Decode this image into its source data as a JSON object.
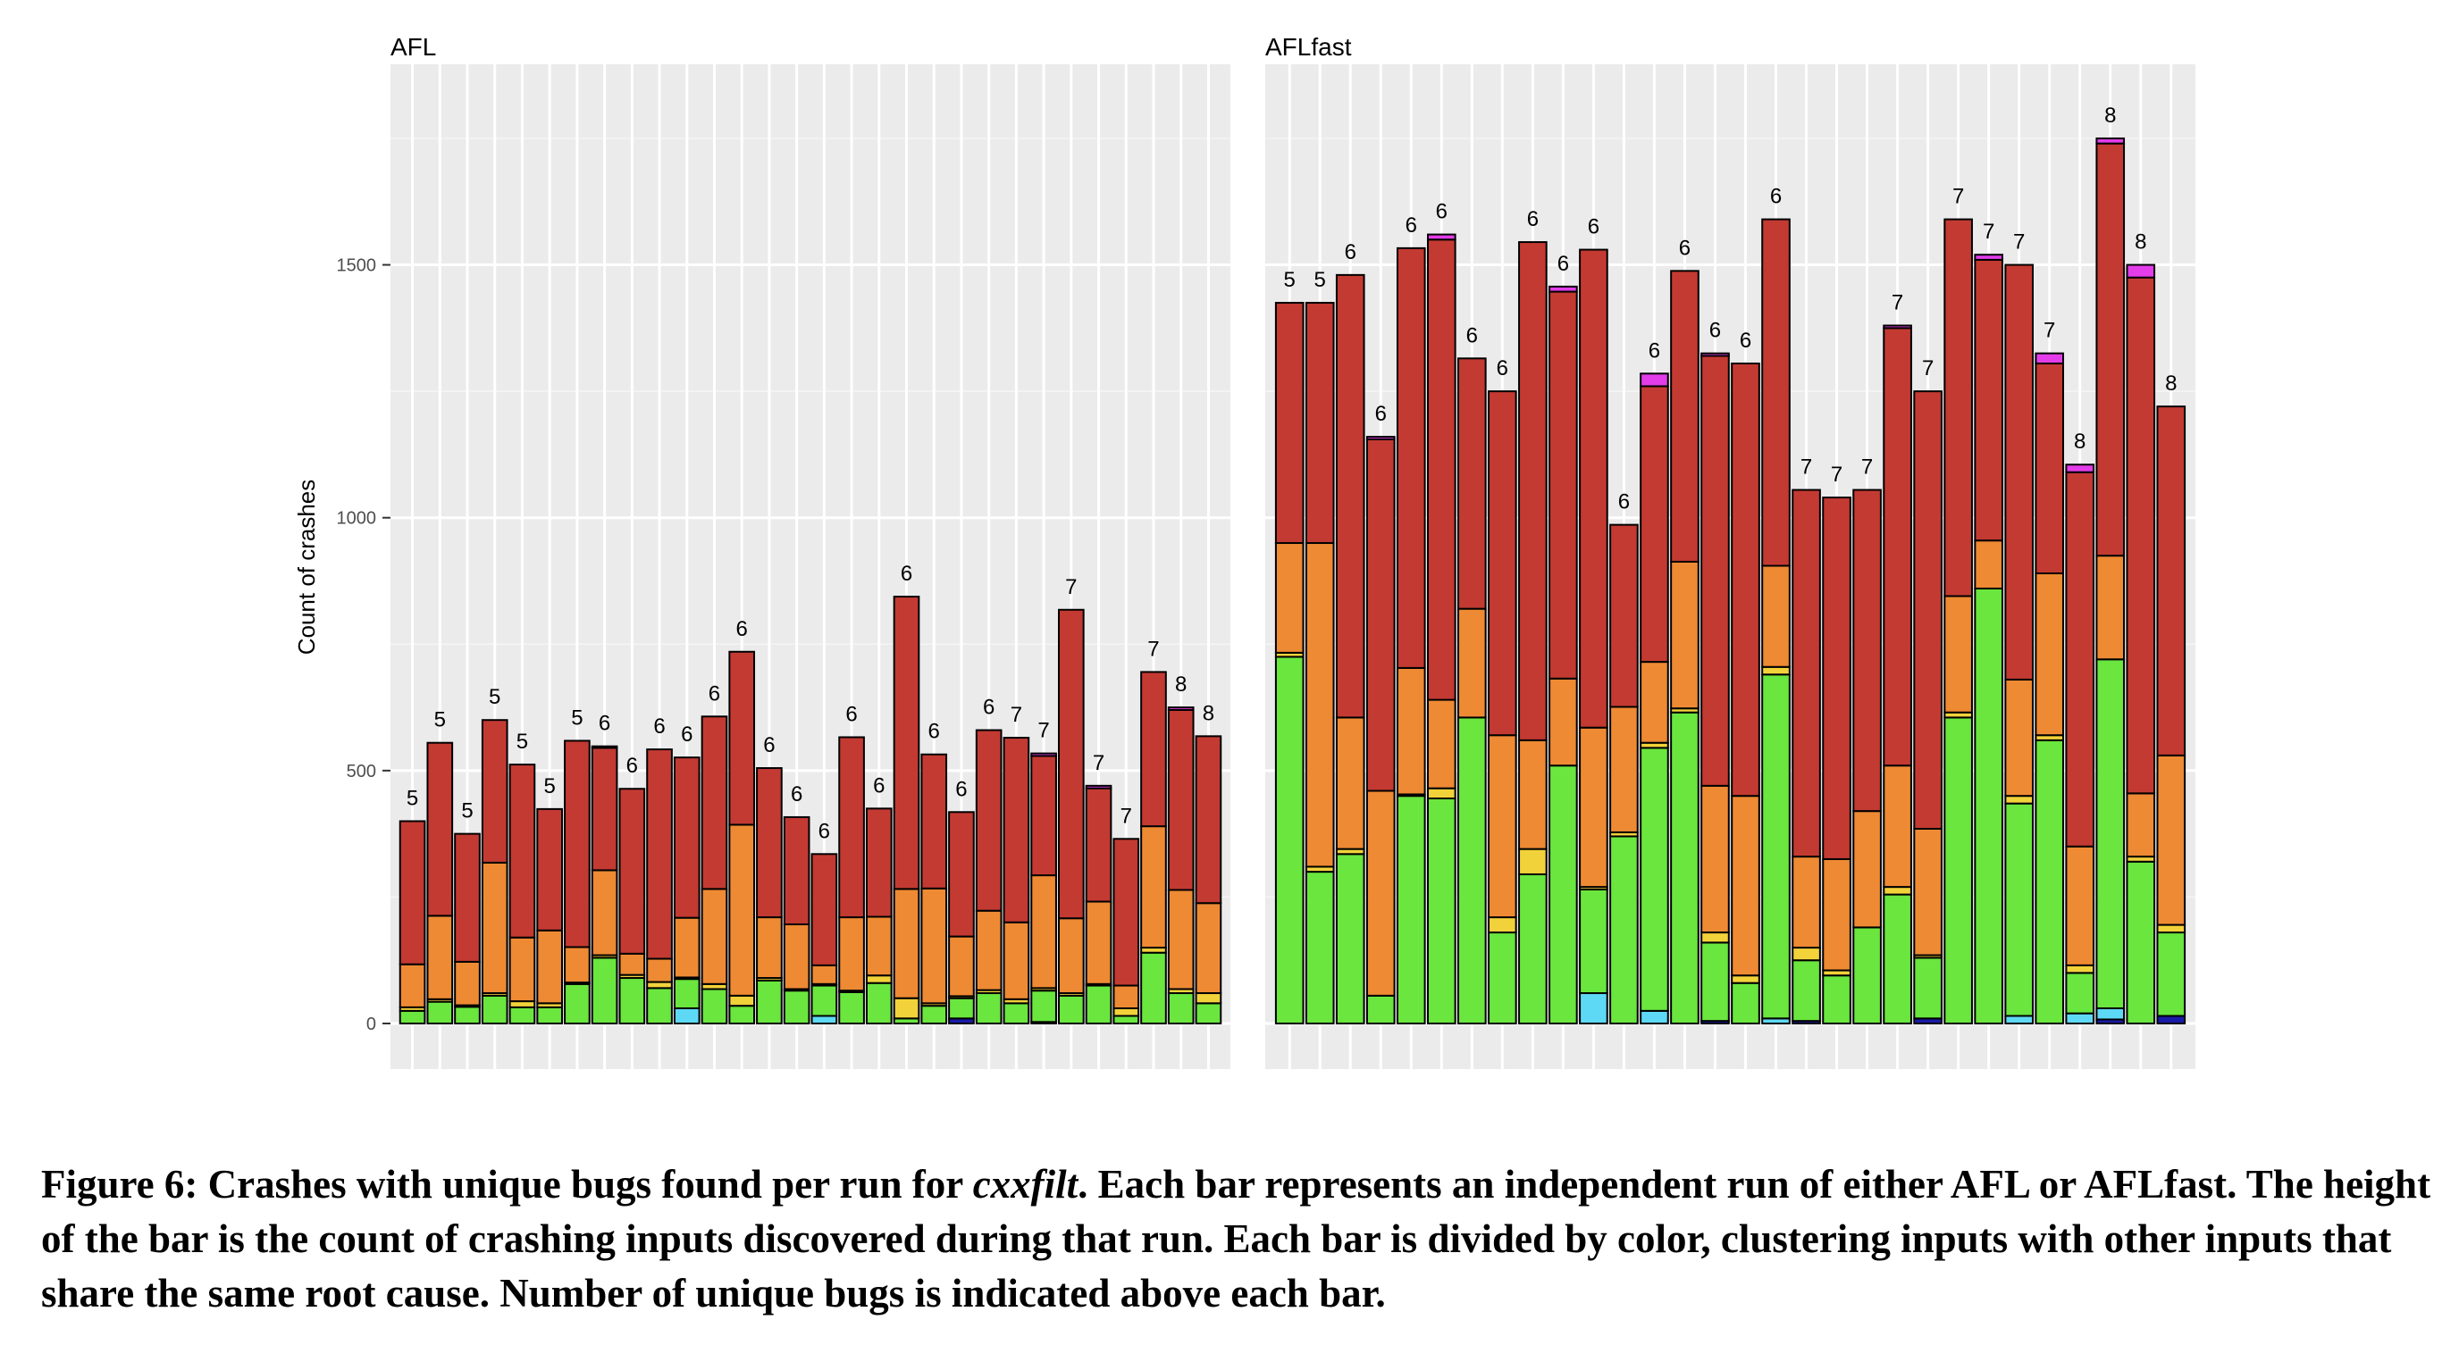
{
  "chart_data": [
    {
      "type": "bar",
      "stacked": true,
      "title": "AFL",
      "ylabel": "Count of crashes",
      "xlabel": "",
      "ylim": [
        0,
        1900
      ],
      "yticks": [
        0,
        500,
        1000,
        1500
      ],
      "grid": true,
      "legend": "none",
      "stack_colors": [
        "#1a1aa8",
        "#5ed9f5",
        "#6ae63e",
        "#f2d23a",
        "#ee8a33",
        "#c33a32",
        "#e23de8"
      ],
      "bars": [
        {
          "bugs": "5",
          "segments": [
            0,
            0,
            25,
            7,
            85,
            283,
            0
          ]
        },
        {
          "bugs": "5",
          "segments": [
            0,
            0,
            43,
            5,
            165,
            342,
            0
          ]
        },
        {
          "bugs": "5",
          "segments": [
            0,
            0,
            33,
            3,
            86,
            253,
            0
          ]
        },
        {
          "bugs": "5",
          "segments": [
            0,
            0,
            55,
            5,
            258,
            282,
            0
          ]
        },
        {
          "bugs": "5",
          "segments": [
            0,
            0,
            32,
            12,
            126,
            342,
            0
          ]
        },
        {
          "bugs": "5",
          "segments": [
            0,
            0,
            32,
            8,
            144,
            240,
            0
          ]
        },
        {
          "bugs": "5",
          "segments": [
            0,
            0,
            78,
            3,
            70,
            408,
            0
          ]
        },
        {
          "bugs": "6",
          "segments": [
            0,
            0,
            130,
            5,
            168,
            242,
            3
          ]
        },
        {
          "bugs": "6",
          "segments": [
            0,
            0,
            90,
            6,
            42,
            326,
            0
          ]
        },
        {
          "bugs": "6",
          "segments": [
            0,
            0,
            70,
            12,
            46,
            414,
            0
          ]
        },
        {
          "bugs": "6",
          "segments": [
            0,
            30,
            58,
            3,
            118,
            317,
            0
          ]
        },
        {
          "bugs": "6",
          "segments": [
            0,
            0,
            68,
            10,
            188,
            341,
            0
          ]
        },
        {
          "bugs": "6",
          "segments": [
            0,
            0,
            35,
            20,
            338,
            342,
            0
          ]
        },
        {
          "bugs": "6",
          "segments": [
            0,
            0,
            85,
            5,
            120,
            295,
            0
          ]
        },
        {
          "bugs": "6",
          "segments": [
            0,
            0,
            65,
            3,
            128,
            212,
            0
          ]
        },
        {
          "bugs": "6",
          "segments": [
            0,
            15,
            60,
            3,
            37,
            220,
            0
          ]
        },
        {
          "bugs": "6",
          "segments": [
            0,
            0,
            62,
            3,
            145,
            356,
            0
          ]
        },
        {
          "bugs": "6",
          "segments": [
            0,
            0,
            80,
            15,
            116,
            214,
            0
          ]
        },
        {
          "bugs": "6",
          "segments": [
            0,
            0,
            10,
            40,
            216,
            578,
            0
          ]
        },
        {
          "bugs": "6",
          "segments": [
            0,
            0,
            35,
            5,
            227,
            265,
            0
          ]
        },
        {
          "bugs": "6",
          "segments": [
            10,
            0,
            40,
            4,
            118,
            246,
            0
          ]
        },
        {
          "bugs": "6",
          "segments": [
            0,
            0,
            60,
            6,
            157,
            357,
            0
          ]
        },
        {
          "bugs": "7",
          "segments": [
            0,
            0,
            40,
            8,
            152,
            365,
            0
          ]
        },
        {
          "bugs": "7",
          "segments": [
            3,
            0,
            62,
            5,
            223,
            236,
            5
          ]
        },
        {
          "bugs": "7",
          "segments": [
            0,
            0,
            55,
            5,
            148,
            610,
            0
          ]
        },
        {
          "bugs": "7",
          "segments": [
            0,
            0,
            75,
            3,
            163,
            224,
            5
          ]
        },
        {
          "bugs": "7",
          "segments": [
            0,
            0,
            15,
            15,
            45,
            290,
            0
          ]
        },
        {
          "bugs": "7",
          "segments": [
            0,
            0,
            140,
            10,
            240,
            305,
            0
          ]
        },
        {
          "bugs": "8",
          "segments": [
            0,
            0,
            60,
            8,
            196,
            356,
            5
          ]
        },
        {
          "bugs": "8",
          "segments": [
            0,
            0,
            40,
            20,
            178,
            330,
            0
          ]
        }
      ]
    },
    {
      "type": "bar",
      "stacked": true,
      "title": "AFLfast",
      "ylim": [
        0,
        1900
      ],
      "grid": true,
      "legend": "none",
      "bars": [
        {
          "bugs": "5",
          "segments": [
            0,
            0,
            725,
            8,
            217,
            475,
            0
          ]
        },
        {
          "bugs": "5",
          "segments": [
            0,
            0,
            300,
            10,
            640,
            475,
            0
          ]
        },
        {
          "bugs": "6",
          "segments": [
            0,
            0,
            335,
            10,
            260,
            875,
            0
          ]
        },
        {
          "bugs": "6",
          "segments": [
            0,
            0,
            55,
            0,
            405,
            695,
            5
          ]
        },
        {
          "bugs": "6",
          "segments": [
            0,
            0,
            450,
            3,
            250,
            830,
            0
          ]
        },
        {
          "bugs": "6",
          "segments": [
            0,
            0,
            445,
            20,
            175,
            910,
            10
          ]
        },
        {
          "bugs": "6",
          "segments": [
            0,
            0,
            605,
            0,
            215,
            495,
            0
          ]
        },
        {
          "bugs": "6",
          "segments": [
            0,
            0,
            180,
            30,
            360,
            680,
            0
          ]
        },
        {
          "bugs": "6",
          "segments": [
            0,
            0,
            295,
            50,
            215,
            985,
            0
          ]
        },
        {
          "bugs": "6",
          "segments": [
            0,
            0,
            510,
            0,
            172,
            765,
            10
          ]
        },
        {
          "bugs": "6",
          "segments": [
            0,
            60,
            205,
            5,
            315,
            945,
            0
          ]
        },
        {
          "bugs": "6",
          "segments": [
            0,
            0,
            370,
            8,
            248,
            360,
            0
          ]
        },
        {
          "bugs": "6",
          "segments": [
            0,
            25,
            520,
            10,
            160,
            545,
            25
          ]
        },
        {
          "bugs": "6",
          "segments": [
            0,
            0,
            615,
            8,
            290,
            575,
            0
          ]
        },
        {
          "bugs": "6",
          "segments": [
            5,
            0,
            155,
            20,
            290,
            850,
            5
          ]
        },
        {
          "bugs": "6",
          "segments": [
            0,
            0,
            80,
            15,
            355,
            855,
            0
          ]
        },
        {
          "bugs": "6",
          "segments": [
            0,
            10,
            680,
            15,
            200,
            685,
            0
          ]
        },
        {
          "bugs": "7",
          "segments": [
            5,
            0,
            120,
            25,
            180,
            725,
            0
          ]
        },
        {
          "bugs": "7",
          "segments": [
            0,
            0,
            95,
            10,
            220,
            715,
            0
          ]
        },
        {
          "bugs": "7",
          "segments": [
            0,
            0,
            190,
            0,
            230,
            635,
            0
          ]
        },
        {
          "bugs": "7",
          "segments": [
            0,
            0,
            255,
            15,
            240,
            865,
            5
          ]
        },
        {
          "bugs": "7",
          "segments": [
            10,
            0,
            120,
            5,
            250,
            865,
            0
          ]
        },
        {
          "bugs": "7",
          "segments": [
            0,
            0,
            605,
            10,
            230,
            745,
            0
          ]
        },
        {
          "bugs": "7",
          "segments": [
            0,
            0,
            860,
            0,
            95,
            555,
            10
          ]
        },
        {
          "bugs": "7",
          "segments": [
            0,
            15,
            420,
            15,
            230,
            820,
            0
          ]
        },
        {
          "bugs": "7",
          "segments": [
            0,
            0,
            560,
            10,
            320,
            415,
            20
          ]
        },
        {
          "bugs": "8",
          "segments": [
            0,
            20,
            80,
            15,
            235,
            740,
            15
          ]
        },
        {
          "bugs": "8",
          "segments": [
            8,
            22,
            690,
            0,
            205,
            815,
            10
          ]
        },
        {
          "bugs": "8",
          "segments": [
            0,
            0,
            320,
            10,
            125,
            1020,
            25
          ]
        },
        {
          "bugs": "8",
          "segments": [
            15,
            0,
            165,
            15,
            335,
            690,
            0
          ]
        }
      ]
    }
  ],
  "caption": {
    "bold_part": "Figure 6: Crashes with unique bugs found per run for ",
    "italic_part": "cxxfilt",
    "rest_part": ". Each bar represents an independent run of either AFL or AFLfast. The height of the bar is the count of crashing inputs discovered during that run. Each bar is divided by color, clustering inputs with other inputs that share the same root cause. Number of unique bugs is indicated above each bar."
  }
}
